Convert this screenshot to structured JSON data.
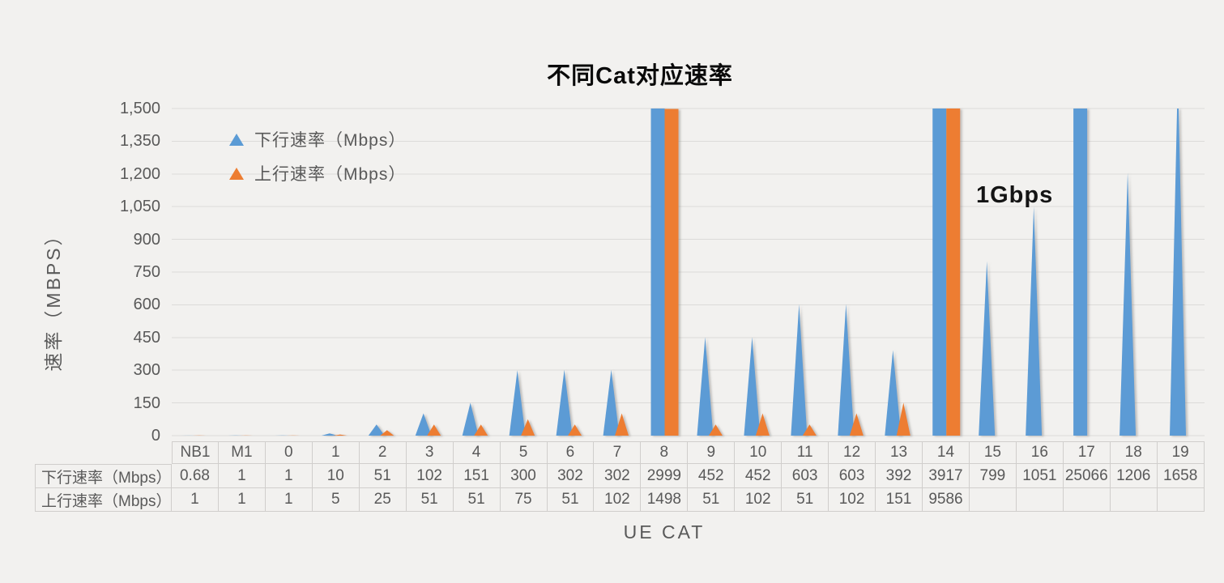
{
  "title": "不同Cat对应速率",
  "annotation": "1Gbps",
  "legend": [
    {
      "label": "下行速率（Mbps）",
      "color": "#5B9BD5"
    },
    {
      "label": "上行速率（Mbps）",
      "color": "#ED7D31"
    }
  ],
  "y_axis": {
    "title": "速率（MBPS）",
    "ticks": [
      "0",
      "150",
      "300",
      "450",
      "600",
      "750",
      "900",
      "1,050",
      "1,200",
      "1,350",
      "1,500"
    ]
  },
  "x_axis": {
    "title": "UE CAT"
  },
  "colors": {
    "downlink": "#5B9BD5",
    "uplink": "#ED7D31",
    "grid": "#DCDBD9",
    "text_gray": "#595959",
    "background": "#F2F1EF",
    "table_border": "#D0CECC"
  },
  "table": {
    "row_labels": [
      "下行速率（Mbps）",
      "上行速率（Mbps）"
    ],
    "categories": [
      "NB1",
      "M1",
      "0",
      "1",
      "2",
      "3",
      "4",
      "5",
      "6",
      "7",
      "8",
      "9",
      "10",
      "11",
      "12",
      "13",
      "14",
      "15",
      "16",
      "17",
      "18",
      "19"
    ],
    "downlink_display": [
      "0.68",
      "1",
      "1",
      "10",
      "51",
      "102",
      "151",
      "300",
      "302",
      "302",
      "2999",
      "452",
      "452",
      "603",
      "603",
      "392",
      "3917",
      "799",
      "1051",
      "25066",
      "1206",
      "1658"
    ],
    "uplink_display": [
      "1",
      "1",
      "1",
      "5",
      "25",
      "51",
      "51",
      "75",
      "51",
      "102",
      "1498",
      "51",
      "102",
      "51",
      "102",
      "151",
      "9586",
      "",
      "",
      "",
      "",
      ""
    ]
  },
  "chart_data": {
    "type": "bar",
    "subtype": "triangle-shaped-columns",
    "title": "不同Cat对应速率",
    "xlabel": "UE CAT",
    "ylabel": "速率（MBPS）",
    "ylim": [
      0,
      1500
    ],
    "ytick_step": 150,
    "grid": "horizontal",
    "legend_position": "top-left-inside",
    "categories": [
      "NB1",
      "M1",
      "0",
      "1",
      "2",
      "3",
      "4",
      "5",
      "6",
      "7",
      "8",
      "9",
      "10",
      "11",
      "12",
      "13",
      "14",
      "15",
      "16",
      "17",
      "18",
      "19"
    ],
    "series": [
      {
        "name": "下行速率（Mbps）",
        "key": "downlink",
        "color": "#5B9BD5",
        "values": [
          0.68,
          1,
          1,
          10,
          51,
          102,
          151,
          300,
          302,
          302,
          2999,
          452,
          452,
          603,
          603,
          392,
          3917,
          799,
          1051,
          25066,
          1206,
          1658
        ]
      },
      {
        "name": "上行速率（Mbps）",
        "key": "uplink",
        "color": "#ED7D31",
        "values": [
          1,
          1,
          1,
          5,
          25,
          51,
          51,
          75,
          51,
          102,
          1498,
          51,
          102,
          51,
          102,
          151,
          9586,
          null,
          null,
          null,
          null,
          null
        ]
      }
    ],
    "annotations": [
      {
        "text": "1Gbps",
        "near_categories": [
          "15",
          "16"
        ],
        "y_approx": 1100
      }
    ]
  }
}
